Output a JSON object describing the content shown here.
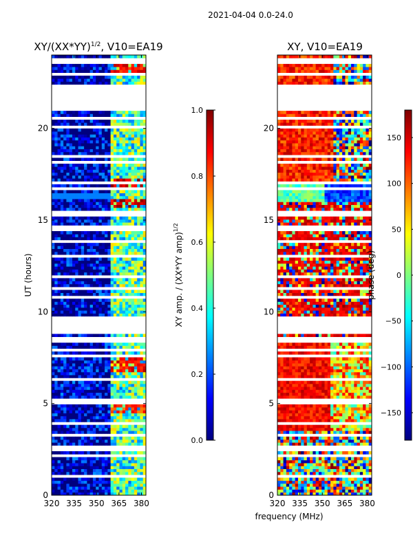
{
  "figure": {
    "suptitle": "2021-04-04 0.0-24.0",
    "shared_xlabel": "frequency (MHz)"
  },
  "colors": {
    "jet": [
      "#00007f",
      "#0000ff",
      "#007fff",
      "#00ffff",
      "#7fff7f",
      "#ffff00",
      "#ff7f00",
      "#ff0000",
      "#7f0000"
    ],
    "gap": "#ffffff",
    "frame": "#000000"
  },
  "chart_data": [
    {
      "type": "heatmap",
      "title_main": "XY/(XX*YY)",
      "title_sup": "1/2",
      "title_tail": ", V10=EA19",
      "xlabel": "",
      "ylabel": "UT (hours)",
      "xlim": [
        320,
        383
      ],
      "ylim": [
        0,
        24
      ],
      "xticks": [
        320,
        335,
        350,
        365,
        380
      ],
      "yticks": [
        0,
        5,
        10,
        15,
        20
      ],
      "colorbar": {
        "label_main": "XY amp. / (XX*YY amp)",
        "label_sup": "1/2",
        "range": [
          0.0,
          1.0
        ],
        "ticks": [
          "0.0",
          "0.2",
          "0.4",
          "0.6",
          "0.8",
          "1.0"
        ],
        "tick_values": [
          0.0,
          0.2,
          0.4,
          0.6,
          0.8,
          1.0
        ]
      },
      "description_bands": [
        {
          "x_from": 320,
          "x_to": 360,
          "value": 0.05
        },
        {
          "x_from": 360,
          "x_to": 383,
          "value": 0.45
        }
      ],
      "hot_spots_ut": [
        {
          "ut_from": 16.6,
          "ut_to": 17.3,
          "value": 0.85
        },
        {
          "ut_from": 15.7,
          "ut_to": 16.2,
          "value": 0.85
        },
        {
          "ut_from": 22.9,
          "ut_to": 23.6,
          "value": 0.8
        },
        {
          "ut_from": 6.8,
          "ut_to": 7.6,
          "value": 0.8
        },
        {
          "ut_from": 4.5,
          "ut_to": 5.2,
          "value": 0.75
        }
      ]
    },
    {
      "type": "heatmap",
      "title_main": "XY, V10=EA19",
      "xlabel": "",
      "ylabel": "",
      "xlim": [
        320,
        383
      ],
      "ylim": [
        0,
        24
      ],
      "xticks": [
        320,
        335,
        350,
        365,
        380
      ],
      "yticks": [
        0,
        5,
        10,
        15,
        20
      ],
      "colorbar": {
        "label_main": "phase (deg)",
        "range": [
          -180,
          180
        ],
        "ticks": [
          "−150",
          "−100",
          "−50",
          "0",
          "50",
          "100",
          "150"
        ],
        "tick_values": [
          -150,
          -100,
          -50,
          0,
          50,
          100,
          150
        ]
      }
    }
  ]
}
